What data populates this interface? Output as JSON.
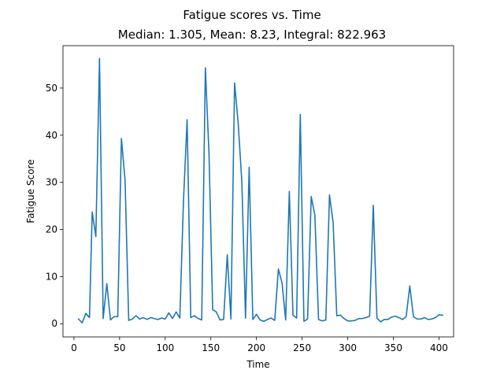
{
  "chart_data": {
    "type": "line",
    "title": "Fatigue scores vs. Time",
    "subtitle": "Median: 1.305, Mean: 8.23, Integral: 822.963",
    "xlabel": "Time",
    "ylabel": "Fatigue Score",
    "xlim": [
      -12,
      416
    ],
    "ylim": [
      -2.8,
      59.0
    ],
    "xticks": [
      0,
      50,
      100,
      150,
      200,
      250,
      300,
      350,
      400
    ],
    "yticks": [
      0,
      10,
      20,
      30,
      40,
      50
    ],
    "grid": false,
    "line_color": "#1f77b4",
    "series": [
      {
        "x": [
          5,
          9,
          13,
          17,
          20,
          24,
          28,
          32,
          36,
          40,
          44,
          48,
          52,
          56,
          60,
          64,
          68,
          72,
          76,
          80,
          84,
          88,
          92,
          96,
          100,
          104,
          108,
          112,
          116,
          120,
          124,
          128,
          132,
          136,
          140,
          144,
          148,
          152,
          156,
          160,
          164,
          168,
          172,
          176,
          180,
          184,
          188,
          192,
          196,
          200,
          204,
          208,
          212,
          216,
          220,
          224,
          228,
          232,
          236,
          240,
          244,
          248,
          252,
          256,
          260,
          264,
          268,
          272,
          276,
          280,
          284,
          288,
          292,
          296,
          300,
          304,
          308,
          312,
          316,
          320,
          324,
          328,
          332,
          336,
          340,
          344,
          348,
          352,
          356,
          360,
          364,
          368,
          372,
          376,
          380,
          384,
          388,
          392,
          396,
          400,
          404
        ],
        "values": [
          1.0,
          0.2,
          2.2,
          1.3,
          23.7,
          18.5,
          56.3,
          1.1,
          8.5,
          0.8,
          1.5,
          1.5,
          39.3,
          30.5,
          0.7,
          1.0,
          1.7,
          1.0,
          1.3,
          0.9,
          1.3,
          1.1,
          0.9,
          1.2,
          1.0,
          2.3,
          1.1,
          2.5,
          1.2,
          26.0,
          43.3,
          1.3,
          1.7,
          1.1,
          0.8,
          54.3,
          36.0,
          3.0,
          2.5,
          0.8,
          0.9,
          14.6,
          1.0,
          51.1,
          42.5,
          30.0,
          1.2,
          33.2,
          0.9,
          2.0,
          0.8,
          0.5,
          0.9,
          1.2,
          0.7,
          11.6,
          8.7,
          0.8,
          28.1,
          1.8,
          1.2,
          44.4,
          0.5,
          1.0,
          27.0,
          23.0,
          0.9,
          0.6,
          0.8,
          27.3,
          21.5,
          1.7,
          1.8,
          1.1,
          0.6,
          0.6,
          0.7,
          1.1,
          1.1,
          1.3,
          1.6,
          25.1,
          1.2,
          0.4,
          0.9,
          0.9,
          1.4,
          1.6,
          1.3,
          0.9,
          1.5,
          8.0,
          1.5,
          1.0,
          1.0,
          1.3,
          0.9,
          1.0,
          1.3,
          1.9,
          1.8
        ]
      }
    ]
  }
}
